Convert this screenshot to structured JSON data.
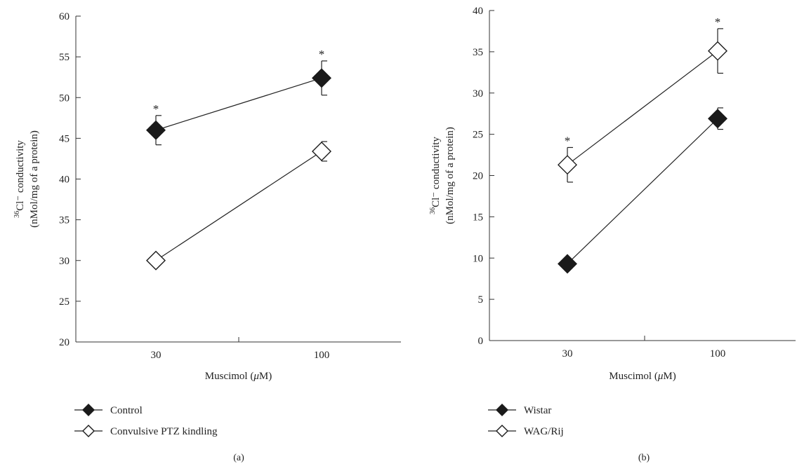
{
  "chart_data": [
    {
      "type": "line",
      "panel_label": "(a)",
      "xlabel": "Muscimol (μM)",
      "ylabel_line1": "36Cl⁻ conductivity",
      "ylabel_line2": "(nMol/mg of a protein)",
      "ylim": [
        20,
        60
      ],
      "yticks": [
        20,
        25,
        30,
        35,
        40,
        45,
        50,
        55,
        60
      ],
      "categories": [
        "30",
        "100"
      ],
      "series": [
        {
          "name": "Control",
          "marker": "filled-diamond",
          "values": [
            46.0,
            52.4
          ],
          "error": [
            1.8,
            2.1
          ],
          "significance": [
            "*",
            "*"
          ]
        },
        {
          "name": "Convulsive PTZ kindling",
          "marker": "open-diamond",
          "values": [
            30.0,
            43.4
          ],
          "error": [
            0.0,
            1.2
          ],
          "significance": [
            "",
            ""
          ]
        }
      ]
    },
    {
      "type": "line",
      "panel_label": "(b)",
      "xlabel": "Muscimol (μM)",
      "ylabel_line1": "36Cl⁻ conductivity",
      "ylabel_line2": "(nMol/mg of a protein)",
      "ylim": [
        0,
        40
      ],
      "yticks": [
        0,
        5,
        10,
        15,
        20,
        25,
        30,
        35,
        40
      ],
      "categories": [
        "30",
        "100"
      ],
      "series": [
        {
          "name": "Wistar",
          "marker": "filled-diamond",
          "values": [
            9.3,
            26.9
          ],
          "error": [
            0.0,
            1.3
          ],
          "significance": [
            "",
            ""
          ]
        },
        {
          "name": "WAG/Rij",
          "marker": "open-diamond",
          "values": [
            21.3,
            35.1
          ],
          "error": [
            2.1,
            2.7
          ],
          "significance": [
            "*",
            "*"
          ]
        }
      ]
    }
  ]
}
